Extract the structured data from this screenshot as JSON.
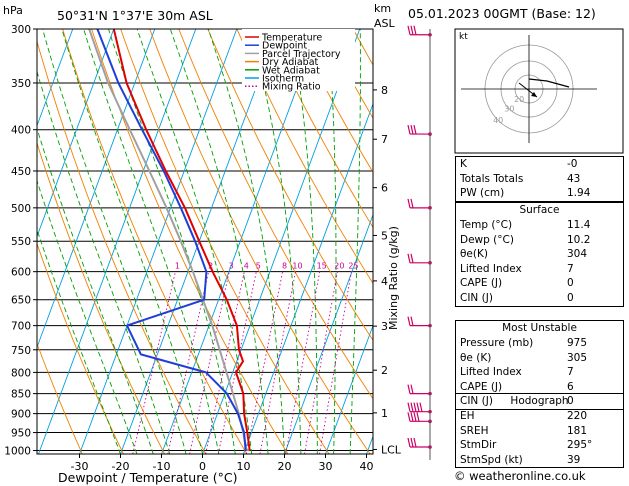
{
  "header": {
    "hpa_label": "hPa",
    "location": "50°31'N  1°37'E  30m  ASL",
    "km_label": "km",
    "asl_label": "ASL",
    "datetime": "05.01.2023  00GMT  (Base: 12)"
  },
  "legend": {
    "items": [
      {
        "label": "Temperature",
        "color": "#e00000",
        "style": "solid"
      },
      {
        "label": "Dewpoint",
        "color": "#1f3fd8",
        "style": "solid"
      },
      {
        "label": "Parcel Trajectory",
        "color": "#a0a0a0",
        "style": "solid"
      },
      {
        "label": "Dry Adiabat",
        "color": "#f08000",
        "style": "solid"
      },
      {
        "label": "Wet Adiabat",
        "color": "#00a000",
        "style": "solid"
      },
      {
        "label": "Isotherm",
        "color": "#00a0e0",
        "style": "solid"
      },
      {
        "label": "Mixing Ratio",
        "color": "#cc0099",
        "style": "dotted"
      }
    ]
  },
  "chart_data": {
    "type": "skew-t",
    "xlabel": "Dewpoint / Temperature (°C)",
    "ylabel_right": "Mixing Ratio (g/kg)",
    "x_ticks": [
      -30,
      -20,
      -10,
      0,
      10,
      20,
      30,
      40
    ],
    "pressure_levels": [
      300,
      350,
      400,
      450,
      500,
      550,
      600,
      650,
      700,
      750,
      800,
      850,
      900,
      950,
      1000
    ],
    "km_ticks": [
      {
        "label": "8",
        "p": 357
      },
      {
        "label": "7",
        "p": 411
      },
      {
        "label": "6",
        "p": 472
      },
      {
        "label": "5",
        "p": 541
      },
      {
        "label": "4",
        "p": 616
      },
      {
        "label": "3",
        "p": 701
      },
      {
        "label": "2",
        "p": 795
      },
      {
        "label": "1",
        "p": 898
      },
      {
        "label": "LCL",
        "p": 997
      }
    ],
    "mixing_ratio_labels": [
      "1",
      "2",
      "3",
      "4",
      "5",
      "8",
      "10",
      "15",
      "20",
      "25"
    ],
    "temperature": [
      {
        "p": 1000,
        "t": 11.2
      },
      {
        "p": 950,
        "t": 9.0
      },
      {
        "p": 900,
        "t": 6.5
      },
      {
        "p": 850,
        "t": 4.5
      },
      {
        "p": 800,
        "t": 0.8
      },
      {
        "p": 775,
        "t": 1.5
      },
      {
        "p": 750,
        "t": -0.5
      },
      {
        "p": 700,
        "t": -3.2
      },
      {
        "p": 650,
        "t": -8.0
      },
      {
        "p": 600,
        "t": -14.0
      },
      {
        "p": 550,
        "t": -20.0
      },
      {
        "p": 500,
        "t": -26.5
      },
      {
        "p": 450,
        "t": -34.5
      },
      {
        "p": 400,
        "t": -43.0
      },
      {
        "p": 350,
        "t": -52.0
      },
      {
        "p": 300,
        "t": -60.0
      }
    ],
    "dewpoint": [
      {
        "p": 1000,
        "t": 10.2
      },
      {
        "p": 950,
        "t": 8.2
      },
      {
        "p": 900,
        "t": 5.0
      },
      {
        "p": 850,
        "t": 0.5
      },
      {
        "p": 800,
        "t": -6.5
      },
      {
        "p": 760,
        "t": -24.0
      },
      {
        "p": 700,
        "t": -30.0
      },
      {
        "p": 650,
        "t": -13.5
      },
      {
        "p": 600,
        "t": -15.5
      },
      {
        "p": 550,
        "t": -21.0
      },
      {
        "p": 500,
        "t": -27.5
      },
      {
        "p": 450,
        "t": -35.0
      },
      {
        "p": 400,
        "t": -44.0
      },
      {
        "p": 350,
        "t": -54.0
      },
      {
        "p": 300,
        "t": -64.0
      }
    ],
    "parcel": [
      {
        "p": 1000,
        "t": 11.2
      },
      {
        "p": 997,
        "t": 10.3
      },
      {
        "p": 950,
        "t": 8.0
      },
      {
        "p": 900,
        "t": 5.2
      },
      {
        "p": 850,
        "t": 2.0
      },
      {
        "p": 800,
        "t": -1.5
      },
      {
        "p": 750,
        "t": -5.2
      },
      {
        "p": 700,
        "t": -9.2
      },
      {
        "p": 650,
        "t": -13.8
      },
      {
        "p": 600,
        "t": -18.8
      },
      {
        "p": 550,
        "t": -24.5
      },
      {
        "p": 500,
        "t": -31.0
      },
      {
        "p": 450,
        "t": -38.5
      },
      {
        "p": 400,
        "t": -47.0
      },
      {
        "p": 350,
        "t": -56.5
      },
      {
        "p": 300,
        "t": -66.0
      }
    ]
  },
  "indices": {
    "rows": [
      {
        "label": "K",
        "value": "-0"
      },
      {
        "label": "Totals Totals",
        "value": "43"
      },
      {
        "label": "PW (cm)",
        "value": "1.94"
      }
    ]
  },
  "surface": {
    "title": "Surface",
    "rows": [
      {
        "label": "Temp (°C)",
        "value": "11.4"
      },
      {
        "label": "Dewp (°C)",
        "value": "10.2"
      },
      {
        "label": "θe(K)",
        "value": "304"
      },
      {
        "label": "Lifted Index",
        "value": "7"
      },
      {
        "label": "CAPE (J)",
        "value": "0"
      },
      {
        "label": "CIN (J)",
        "value": "0"
      }
    ]
  },
  "most_unstable": {
    "title": "Most Unstable",
    "rows": [
      {
        "label": "Pressure (mb)",
        "value": "975"
      },
      {
        "label": "θe (K)",
        "value": "305"
      },
      {
        "label": "Lifted Index",
        "value": "7"
      },
      {
        "label": "CAPE (J)",
        "value": "6"
      },
      {
        "label": "CIN (J)",
        "value": "0"
      }
    ]
  },
  "hodograph_stats": {
    "title": "Hodograph",
    "rows": [
      {
        "label": "EH",
        "value": "220"
      },
      {
        "label": "SREH",
        "value": "181"
      },
      {
        "label": "StmDir",
        "value": "295°"
      },
      {
        "label": "StmSpd (kt)",
        "value": "39"
      }
    ]
  },
  "hodograph": {
    "unit_label": "kt",
    "ring_labels": [
      "20",
      "30",
      "40"
    ]
  },
  "footer": {
    "credit": "© weatheronline.co.uk"
  },
  "colors": {
    "temperature": "#e00000",
    "dewpoint": "#1f3fd8",
    "parcel": "#a0a0a0",
    "dry_adiabat": "#f08000",
    "wet_adiabat": "#00a000",
    "isotherm": "#00a0e0",
    "mixing_ratio": "#cc0099",
    "wind_barb": "#cc0066"
  }
}
